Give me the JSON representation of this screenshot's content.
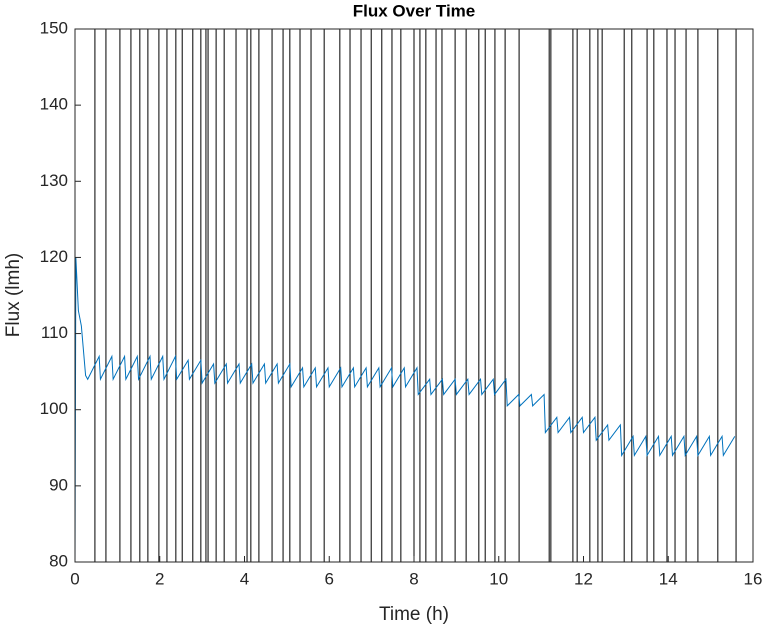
{
  "chart_data": {
    "type": "line",
    "title": "Flux Over Time",
    "xlabel": "Time (h)",
    "ylabel": "Flux (lmh)",
    "xlim": [
      0,
      16
    ],
    "xticks": [
      0,
      2,
      4,
      6,
      8,
      10,
      12,
      14,
      16
    ],
    "ylim": [
      80,
      150
    ],
    "yticks": [
      80,
      90,
      100,
      110,
      120,
      130,
      140,
      150
    ],
    "vline_color": "#000000",
    "vlines": [
      0.47,
      0.73,
      1.06,
      1.32,
      1.53,
      1.72,
      1.98,
      2.17,
      2.38,
      2.53,
      2.78,
      2.97,
      3.09,
      3.14,
      3.33,
      3.52,
      3.8,
      4.06,
      4.15,
      4.34,
      4.65,
      4.91,
      5.07,
      5.31,
      5.57,
      5.88,
      6.25,
      6.49,
      6.75,
      6.99,
      7.24,
      7.48,
      7.69,
      8,
      8.14,
      8.28,
      8.52,
      8.66,
      8.97,
      9.23,
      9.53,
      9.68,
      9.91,
      10.15,
      10.48,
      11.19,
      11.23,
      11.75,
      11.85,
      12.15,
      12.34,
      12.44,
      12.96,
      13.14,
      13.5,
      13.66,
      13.97,
      14.16,
      14.42,
      14.7,
      15.17,
      15.6
    ],
    "x": [
      0,
      0.02,
      0.08,
      0.15,
      0.25,
      0.3,
      0.57,
      0.6,
      0.87,
      0.9,
      1.17,
      1.2,
      1.47,
      1.5,
      1.77,
      1.8,
      2.07,
      2.1,
      2.37,
      2.4,
      2.67,
      2.7,
      2.97,
      3,
      3.27,
      3.3,
      3.57,
      3.6,
      3.87,
      3.9,
      4.17,
      4.2,
      4.47,
      4.5,
      4.77,
      4.8,
      5.07,
      5.1,
      5.37,
      5.4,
      5.67,
      5.7,
      5.97,
      6,
      6.27,
      6.3,
      6.57,
      6.6,
      6.87,
      6.9,
      7.17,
      7.2,
      7.47,
      7.5,
      7.77,
      7.8,
      8.07,
      8.1,
      8.37,
      8.4,
      8.67,
      8.7,
      8.97,
      9,
      9.27,
      9.3,
      9.57,
      9.6,
      9.87,
      9.9,
      10.17,
      10.2,
      10.47,
      10.5,
      10.77,
      10.8,
      11.07,
      11.1,
      11.37,
      11.4,
      11.67,
      11.7,
      11.97,
      12,
      12.27,
      12.3,
      12.57,
      12.6,
      12.87,
      12.9,
      13.17,
      13.2,
      13.47,
      13.5,
      13.77,
      13.8,
      14.07,
      14.1,
      14.37,
      14.4,
      14.67,
      14.7,
      14.97,
      15,
      15.27,
      15.3,
      15.57
    ],
    "series": [
      {
        "color": "#0072bd",
        "values": [
          80,
          120,
          113,
          111,
          104.5,
          104,
          107,
          104,
          107,
          104,
          107,
          104,
          107,
          104,
          107,
          104,
          107,
          104,
          107,
          104,
          106.5,
          104,
          106.5,
          103.5,
          106,
          103.5,
          106,
          103.5,
          106,
          103.5,
          106,
          103.5,
          106,
          103.5,
          106,
          103.5,
          106,
          103,
          105.5,
          103,
          105.5,
          103,
          105.5,
          103,
          105.5,
          103,
          105.5,
          103,
          105.5,
          103,
          105.5,
          103,
          105.5,
          103,
          105.5,
          103,
          105.5,
          102,
          104,
          102,
          104,
          102,
          104,
          102,
          104,
          102,
          104,
          102,
          104,
          102,
          104,
          100.5,
          102,
          100.5,
          102,
          100.5,
          102,
          97,
          99,
          97,
          99,
          97,
          99,
          97,
          99,
          96,
          98,
          96,
          98,
          94,
          96.5,
          94,
          96.5,
          94,
          96.5,
          94,
          96.5,
          94,
          96.5,
          94,
          96.5,
          94,
          96.5,
          94,
          96.5,
          94,
          96.5
        ]
      }
    ]
  }
}
